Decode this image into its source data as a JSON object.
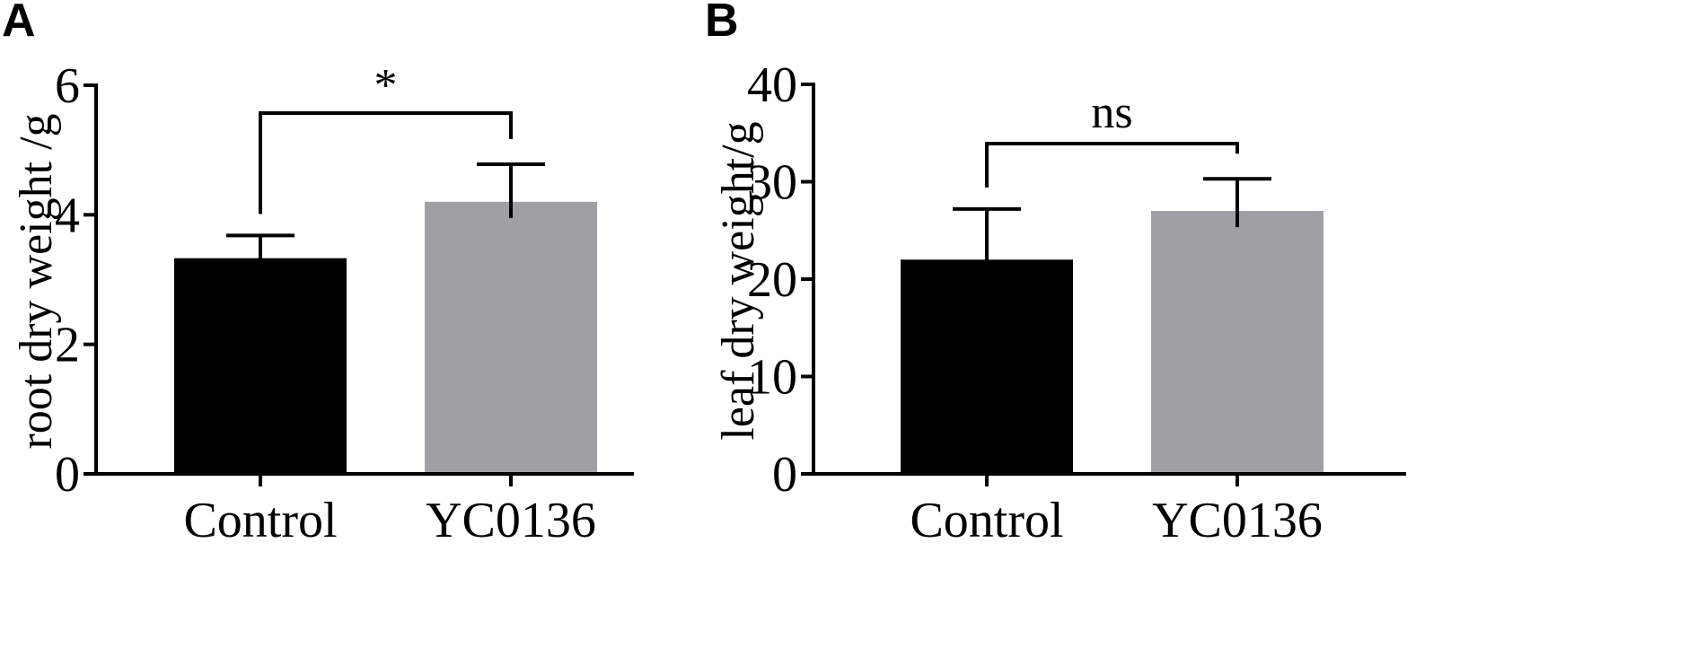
{
  "chart_data": [
    {
      "type": "bar",
      "panel": "A",
      "categories": [
        "Control",
        "YC0136"
      ],
      "values": [
        3.33,
        4.2
      ],
      "errors": [
        0.35,
        0.58
      ],
      "title": "",
      "xlabel": "",
      "ylabel": "root dry weight /g",
      "ylim": [
        0,
        6
      ],
      "yticks": [
        0,
        2,
        4,
        6
      ],
      "ytick_labels": [
        "0",
        "2",
        "4",
        "6"
      ],
      "colors": [
        "#000000",
        "#a0a0a4"
      ],
      "significance": "*",
      "grid": false
    },
    {
      "type": "bar",
      "panel": "B",
      "categories": [
        "Control",
        "YC0136"
      ],
      "values": [
        22,
        27
      ],
      "errors": [
        5.2,
        3.3
      ],
      "title": "",
      "xlabel": "",
      "ylabel": "leaf dry weight/g",
      "ylim": [
        0,
        40
      ],
      "yticks": [
        0,
        10,
        20,
        30,
        40
      ],
      "ytick_labels": [
        "0",
        "10",
        "20",
        "30",
        "40"
      ],
      "colors": [
        "#000000",
        "#a0a0a4"
      ],
      "significance": "ns",
      "grid": false
    }
  ]
}
